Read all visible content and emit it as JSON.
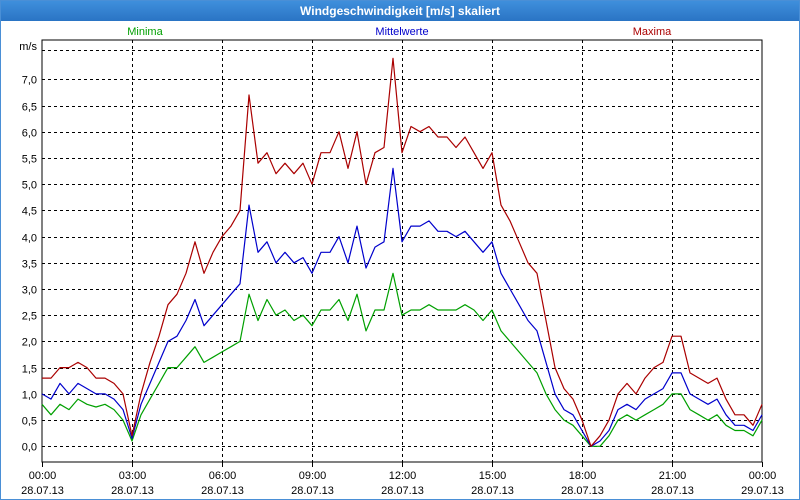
{
  "window": {
    "title": "Windgeschwindigkeit [m/s] skaliert"
  },
  "chart_data": {
    "type": "line",
    "title": "Windgeschwindigkeit [m/s] skaliert",
    "ylabel": "m/s",
    "xlabel": "",
    "ylim": [
      -0.3,
      7.75
    ],
    "xlim": [
      0,
      24
    ],
    "y_ticks": [
      0.0,
      0.5,
      1.0,
      1.5,
      2.0,
      2.5,
      3.0,
      3.5,
      4.0,
      4.5,
      5.0,
      5.5,
      6.0,
      6.5,
      7.0
    ],
    "y_tick_labels": [
      "0,0",
      "0,5",
      "1,0",
      "1,5",
      "2,0",
      "2,5",
      "3,0",
      "3,5",
      "4,0",
      "4,5",
      "5,0",
      "5,5",
      "6,0",
      "6,5",
      "7,0"
    ],
    "x_ticks": [
      0,
      3,
      6,
      9,
      12,
      15,
      18,
      21,
      24
    ],
    "x_tick_labels": [
      [
        "00:00",
        "28.07.13"
      ],
      [
        "03:00",
        "28.07.13"
      ],
      [
        "06:00",
        "28.07.13"
      ],
      [
        "09:00",
        "28.07.13"
      ],
      [
        "12:00",
        "28.07.13"
      ],
      [
        "15:00",
        "28.07.13"
      ],
      [
        "18:00",
        "28.07.13"
      ],
      [
        "21:00",
        "28.07.13"
      ],
      [
        "00:00",
        "29.07.13"
      ]
    ],
    "grid": true,
    "legend_position": "top",
    "series": [
      {
        "name": "Minima",
        "color": "#00a000",
        "points": [
          [
            0,
            0.8
          ],
          [
            0.3,
            0.6
          ],
          [
            0.6,
            0.8
          ],
          [
            0.9,
            0.7
          ],
          [
            1.2,
            0.9
          ],
          [
            1.5,
            0.8
          ],
          [
            1.8,
            0.75
          ],
          [
            2.1,
            0.8
          ],
          [
            2.4,
            0.7
          ],
          [
            2.7,
            0.5
          ],
          [
            3.0,
            0.1
          ],
          [
            3.3,
            0.6
          ],
          [
            3.6,
            0.9
          ],
          [
            3.9,
            1.2
          ],
          [
            4.2,
            1.5
          ],
          [
            4.5,
            1.5
          ],
          [
            4.8,
            1.7
          ],
          [
            5.1,
            1.9
          ],
          [
            5.4,
            1.6
          ],
          [
            5.7,
            1.7
          ],
          [
            6.0,
            1.8
          ],
          [
            6.3,
            1.9
          ],
          [
            6.6,
            2.0
          ],
          [
            6.9,
            2.9
          ],
          [
            7.2,
            2.4
          ],
          [
            7.5,
            2.8
          ],
          [
            7.8,
            2.5
          ],
          [
            8.1,
            2.6
          ],
          [
            8.4,
            2.4
          ],
          [
            8.7,
            2.5
          ],
          [
            9.0,
            2.3
          ],
          [
            9.3,
            2.6
          ],
          [
            9.6,
            2.6
          ],
          [
            9.9,
            2.8
          ],
          [
            10.2,
            2.4
          ],
          [
            10.5,
            2.9
          ],
          [
            10.8,
            2.2
          ],
          [
            11.1,
            2.6
          ],
          [
            11.4,
            2.6
          ],
          [
            11.7,
            3.3
          ],
          [
            12.0,
            2.5
          ],
          [
            12.3,
            2.6
          ],
          [
            12.6,
            2.6
          ],
          [
            12.9,
            2.7
          ],
          [
            13.2,
            2.6
          ],
          [
            13.5,
            2.6
          ],
          [
            13.8,
            2.6
          ],
          [
            14.1,
            2.7
          ],
          [
            14.4,
            2.6
          ],
          [
            14.7,
            2.4
          ],
          [
            15.0,
            2.6
          ],
          [
            15.3,
            2.2
          ],
          [
            15.6,
            2.0
          ],
          [
            15.9,
            1.8
          ],
          [
            16.2,
            1.6
          ],
          [
            16.5,
            1.4
          ],
          [
            16.8,
            1.0
          ],
          [
            17.1,
            0.7
          ],
          [
            17.4,
            0.5
          ],
          [
            17.7,
            0.4
          ],
          [
            18.0,
            0.2
          ],
          [
            18.3,
            0.0
          ],
          [
            18.6,
            0.0
          ],
          [
            18.9,
            0.2
          ],
          [
            19.2,
            0.5
          ],
          [
            19.5,
            0.6
          ],
          [
            19.8,
            0.5
          ],
          [
            20.1,
            0.6
          ],
          [
            20.4,
            0.7
          ],
          [
            20.7,
            0.8
          ],
          [
            21.0,
            1.0
          ],
          [
            21.3,
            1.0
          ],
          [
            21.6,
            0.7
          ],
          [
            21.9,
            0.6
          ],
          [
            22.2,
            0.5
          ],
          [
            22.5,
            0.6
          ],
          [
            22.8,
            0.4
          ],
          [
            23.1,
            0.3
          ],
          [
            23.4,
            0.3
          ],
          [
            23.7,
            0.2
          ],
          [
            24.0,
            0.5
          ]
        ]
      },
      {
        "name": "Mittelwerte",
        "color": "#0000cc",
        "points": [
          [
            0,
            1.0
          ],
          [
            0.3,
            0.9
          ],
          [
            0.6,
            1.2
          ],
          [
            0.9,
            1.0
          ],
          [
            1.2,
            1.2
          ],
          [
            1.5,
            1.1
          ],
          [
            1.8,
            1.0
          ],
          [
            2.1,
            1.0
          ],
          [
            2.4,
            0.9
          ],
          [
            2.7,
            0.7
          ],
          [
            3.0,
            0.15
          ],
          [
            3.3,
            0.8
          ],
          [
            3.6,
            1.2
          ],
          [
            3.9,
            1.6
          ],
          [
            4.2,
            2.0
          ],
          [
            4.5,
            2.1
          ],
          [
            4.8,
            2.4
          ],
          [
            5.1,
            2.8
          ],
          [
            5.4,
            2.3
          ],
          [
            5.7,
            2.5
          ],
          [
            6.0,
            2.7
          ],
          [
            6.3,
            2.9
          ],
          [
            6.6,
            3.1
          ],
          [
            6.9,
            4.6
          ],
          [
            7.2,
            3.7
          ],
          [
            7.5,
            3.9
          ],
          [
            7.8,
            3.5
          ],
          [
            8.1,
            3.7
          ],
          [
            8.4,
            3.5
          ],
          [
            8.7,
            3.6
          ],
          [
            9.0,
            3.3
          ],
          [
            9.3,
            3.7
          ],
          [
            9.6,
            3.7
          ],
          [
            9.9,
            4.0
          ],
          [
            10.2,
            3.5
          ],
          [
            10.5,
            4.2
          ],
          [
            10.8,
            3.4
          ],
          [
            11.1,
            3.8
          ],
          [
            11.4,
            3.9
          ],
          [
            11.7,
            5.3
          ],
          [
            12.0,
            3.9
          ],
          [
            12.3,
            4.2
          ],
          [
            12.6,
            4.2
          ],
          [
            12.9,
            4.3
          ],
          [
            13.2,
            4.1
          ],
          [
            13.5,
            4.1
          ],
          [
            13.8,
            4.0
          ],
          [
            14.1,
            4.1
          ],
          [
            14.4,
            3.9
          ],
          [
            14.7,
            3.7
          ],
          [
            15.0,
            3.9
          ],
          [
            15.3,
            3.3
          ],
          [
            15.6,
            3.0
          ],
          [
            15.9,
            2.7
          ],
          [
            16.2,
            2.4
          ],
          [
            16.5,
            2.2
          ],
          [
            16.8,
            1.6
          ],
          [
            17.1,
            1.0
          ],
          [
            17.4,
            0.7
          ],
          [
            17.7,
            0.6
          ],
          [
            18.0,
            0.3
          ],
          [
            18.3,
            0.0
          ],
          [
            18.6,
            0.1
          ],
          [
            18.9,
            0.3
          ],
          [
            19.2,
            0.7
          ],
          [
            19.5,
            0.8
          ],
          [
            19.8,
            0.7
          ],
          [
            20.1,
            0.9
          ],
          [
            20.4,
            1.0
          ],
          [
            20.7,
            1.1
          ],
          [
            21.0,
            1.4
          ],
          [
            21.3,
            1.4
          ],
          [
            21.6,
            1.0
          ],
          [
            21.9,
            0.9
          ],
          [
            22.2,
            0.8
          ],
          [
            22.5,
            0.9
          ],
          [
            22.8,
            0.6
          ],
          [
            23.1,
            0.4
          ],
          [
            23.4,
            0.4
          ],
          [
            23.7,
            0.3
          ],
          [
            24.0,
            0.6
          ]
        ]
      },
      {
        "name": "Maxima",
        "color": "#aa0000",
        "points": [
          [
            0,
            1.3
          ],
          [
            0.3,
            1.3
          ],
          [
            0.6,
            1.5
          ],
          [
            0.9,
            1.5
          ],
          [
            1.2,
            1.6
          ],
          [
            1.5,
            1.5
          ],
          [
            1.8,
            1.3
          ],
          [
            2.1,
            1.3
          ],
          [
            2.4,
            1.2
          ],
          [
            2.7,
            1.0
          ],
          [
            3.0,
            0.2
          ],
          [
            3.3,
            1.0
          ],
          [
            3.6,
            1.6
          ],
          [
            3.9,
            2.1
          ],
          [
            4.2,
            2.7
          ],
          [
            4.5,
            2.9
          ],
          [
            4.8,
            3.3
          ],
          [
            5.1,
            3.9
          ],
          [
            5.4,
            3.3
          ],
          [
            5.7,
            3.7
          ],
          [
            6.0,
            4.0
          ],
          [
            6.3,
            4.2
          ],
          [
            6.6,
            4.5
          ],
          [
            6.9,
            6.7
          ],
          [
            7.2,
            5.4
          ],
          [
            7.5,
            5.6
          ],
          [
            7.8,
            5.2
          ],
          [
            8.1,
            5.4
          ],
          [
            8.4,
            5.2
          ],
          [
            8.7,
            5.4
          ],
          [
            9.0,
            5.0
          ],
          [
            9.3,
            5.6
          ],
          [
            9.6,
            5.6
          ],
          [
            9.9,
            6.0
          ],
          [
            10.2,
            5.3
          ],
          [
            10.5,
            6.0
          ],
          [
            10.8,
            5.0
          ],
          [
            11.1,
            5.6
          ],
          [
            11.4,
            5.7
          ],
          [
            11.7,
            7.4
          ],
          [
            12.0,
            5.6
          ],
          [
            12.3,
            6.1
          ],
          [
            12.6,
            6.0
          ],
          [
            12.9,
            6.1
          ],
          [
            13.2,
            5.9
          ],
          [
            13.5,
            5.9
          ],
          [
            13.8,
            5.7
          ],
          [
            14.1,
            5.9
          ],
          [
            14.4,
            5.6
          ],
          [
            14.7,
            5.3
          ],
          [
            15.0,
            5.6
          ],
          [
            15.3,
            4.6
          ],
          [
            15.6,
            4.3
          ],
          [
            15.9,
            3.9
          ],
          [
            16.2,
            3.5
          ],
          [
            16.5,
            3.3
          ],
          [
            16.8,
            2.4
          ],
          [
            17.1,
            1.5
          ],
          [
            17.4,
            1.1
          ],
          [
            17.7,
            0.9
          ],
          [
            18.0,
            0.5
          ],
          [
            18.3,
            0.0
          ],
          [
            18.6,
            0.2
          ],
          [
            18.9,
            0.5
          ],
          [
            19.2,
            1.0
          ],
          [
            19.5,
            1.2
          ],
          [
            19.8,
            1.0
          ],
          [
            20.1,
            1.3
          ],
          [
            20.4,
            1.5
          ],
          [
            20.7,
            1.6
          ],
          [
            21.0,
            2.1
          ],
          [
            21.3,
            2.1
          ],
          [
            21.6,
            1.4
          ],
          [
            21.9,
            1.3
          ],
          [
            22.2,
            1.2
          ],
          [
            22.5,
            1.3
          ],
          [
            22.8,
            0.9
          ],
          [
            23.1,
            0.6
          ],
          [
            23.4,
            0.6
          ],
          [
            23.7,
            0.4
          ],
          [
            24.0,
            0.8
          ]
        ]
      }
    ]
  }
}
